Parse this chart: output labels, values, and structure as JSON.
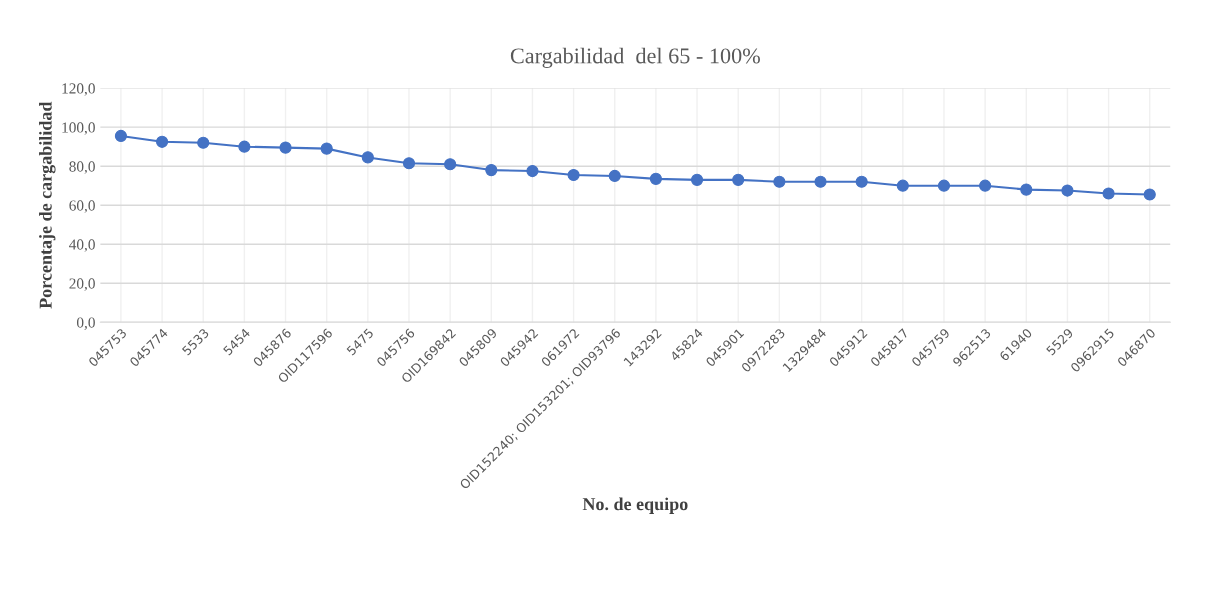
{
  "chart_data": {
    "type": "line",
    "title": "Cargabilidad  del 65 - 100%",
    "xlabel": "No. de equipo",
    "ylabel": "Porcentaje de cargabilidad",
    "categories": [
      "045753",
      "045774",
      "5533",
      "5454",
      "045876",
      "OID117596",
      "5475",
      "045756",
      "OID169842",
      "045809",
      "045942",
      "061972",
      "OID152240; OID153201; OID93796",
      "143292",
      "45824",
      "045901",
      "0972283",
      "1329484",
      "045912",
      "045817",
      "045759",
      "962513",
      "61940",
      "5529",
      "0962915",
      "046870"
    ],
    "series": [
      {
        "color": "#4472c4",
        "values": [
          95.5,
          92.5,
          92,
          90,
          89.5,
          89,
          84.5,
          81.5,
          81,
          78,
          77.5,
          75.5,
          75,
          73.5,
          73,
          73,
          72,
          72,
          72,
          70,
          70,
          70,
          68,
          67.5,
          66,
          65.5
        ]
      }
    ],
    "ylim": [
      0,
      120
    ],
    "yticks": [
      {
        "value": 0,
        "label": "0,0"
      },
      {
        "value": 20,
        "label": "20,0"
      },
      {
        "value": 40,
        "label": "40,0"
      },
      {
        "value": 60,
        "label": "60,0"
      },
      {
        "value": 80,
        "label": "80,0"
      },
      {
        "value": 100,
        "label": "100,0"
      },
      {
        "value": 120,
        "label": "120,0"
      }
    ],
    "grid": true,
    "marker": "circle",
    "line_style": "solid"
  }
}
